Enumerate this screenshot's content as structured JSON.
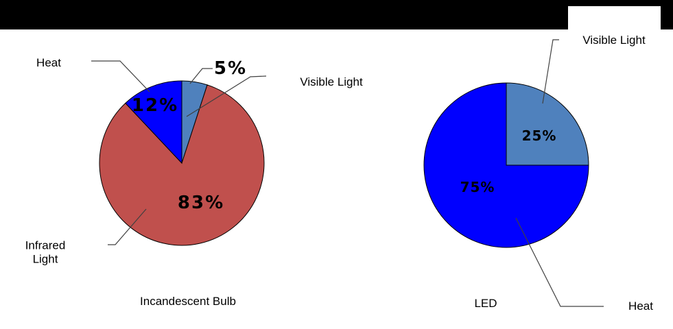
{
  "page": {
    "background_color": "#FFFFFF",
    "top_bar_color": "#000000"
  },
  "chart_data": [
    {
      "type": "pie",
      "title": "Incandescent Bulb",
      "start_angle_deg": 0,
      "direction": "clockwise",
      "slices": [
        {
          "label": "Visible Light",
          "value": 5,
          "pct_label": "5%",
          "color": "#4F81BD"
        },
        {
          "label": "Infrared Light",
          "value": 83,
          "pct_label": "83%",
          "color": "#C0504D"
        },
        {
          "label": "Heat",
          "value": 12,
          "pct_label": "12%",
          "color": "#0000FF"
        }
      ]
    },
    {
      "type": "pie",
      "title": "LED",
      "start_angle_deg": 0,
      "direction": "clockwise",
      "slices": [
        {
          "label": "Visible Light",
          "value": 25,
          "pct_label": "25%",
          "color": "#4F81BD"
        },
        {
          "label": "Heat",
          "value": 75,
          "pct_label": "75%",
          "color": "#0000FF"
        }
      ]
    }
  ]
}
